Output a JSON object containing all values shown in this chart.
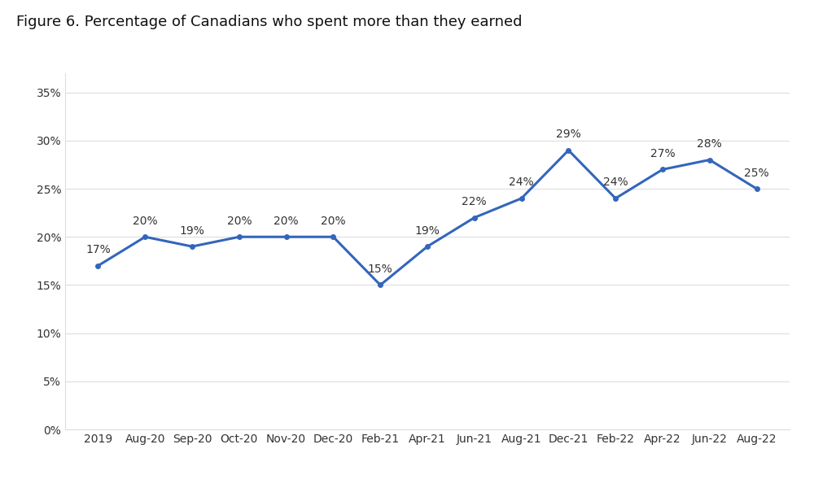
{
  "title": "Figure 6. Percentage of Canadians who spent more than they earned",
  "x_labels": [
    "2019",
    "Aug-20",
    "Sep-20",
    "Oct-20",
    "Nov-20",
    "Dec-20",
    "Feb-21",
    "Apr-21",
    "Jun-21",
    "Aug-21",
    "Dec-21",
    "Feb-22",
    "Apr-22",
    "Jun-22",
    "Aug-22"
  ],
  "y_values": [
    17,
    20,
    19,
    20,
    20,
    20,
    15,
    19,
    22,
    24,
    29,
    24,
    27,
    28,
    25
  ],
  "line_color": "#3366BB",
  "line_width": 2.2,
  "marker": "o",
  "marker_size": 4,
  "ylim": [
    0,
    37
  ],
  "yticks": [
    0,
    5,
    10,
    15,
    20,
    25,
    30,
    35
  ],
  "background_color": "#FFFFFF",
  "plot_bg_color": "#F7F7F7",
  "title_fontsize": 13,
  "label_fontsize": 10,
  "annotation_fontsize": 10,
  "grid_color": "#DDDDDD",
  "text_color": "#333333",
  "title_color": "#111111"
}
